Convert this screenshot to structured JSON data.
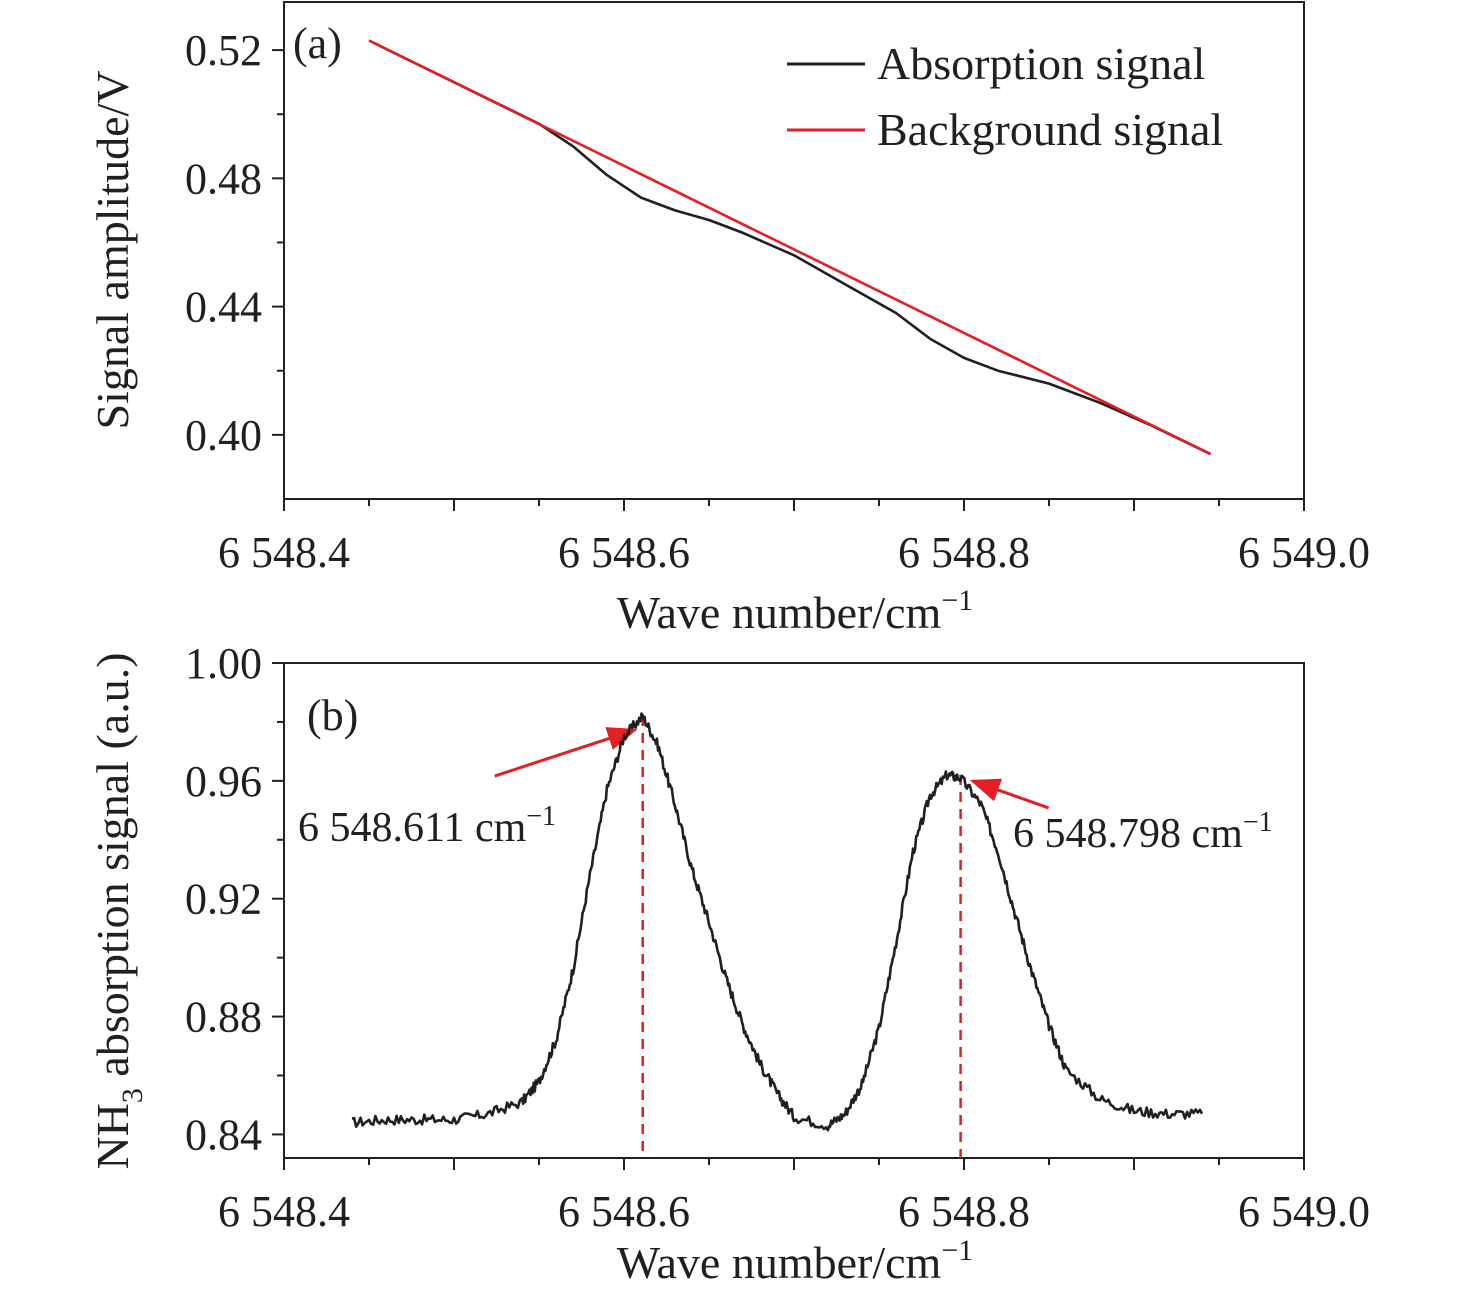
{
  "chart_data": [
    {
      "type": "line",
      "panel_label": "(a)",
      "xlabel": "Wave number/cm",
      "xlabel_sup": "−1",
      "ylabel": "Signal amplitude/V",
      "xlim": [
        6548.4,
        6549.0
      ],
      "ylim": [
        0.38,
        0.535
      ],
      "x_ticks": [
        {
          "value": 6548.4,
          "label": "6 548.4"
        },
        {
          "value": 6548.6,
          "label": "6 548.6"
        },
        {
          "value": 6548.8,
          "label": "6 548.8"
        },
        {
          "value": 6549.0,
          "label": "6 549.0"
        }
      ],
      "y_ticks": [
        {
          "value": 0.4,
          "label": "0.40"
        },
        {
          "value": 0.44,
          "label": "0.44"
        },
        {
          "value": 0.48,
          "label": "0.48"
        },
        {
          "value": 0.52,
          "label": "0.52"
        }
      ],
      "legend_position": "top-right",
      "grid": false,
      "series": [
        {
          "name": "Absorption signal",
          "color": "#231f20",
          "x": [
            6548.45,
            6548.5,
            6548.55,
            6548.57,
            6548.59,
            6548.61,
            6548.63,
            6548.65,
            6548.67,
            6548.7,
            6548.73,
            6548.76,
            6548.78,
            6548.8,
            6548.82,
            6548.85,
            6548.88,
            6548.91,
            6548.945
          ],
          "y": [
            0.523,
            0.51,
            0.497,
            0.49,
            0.481,
            0.474,
            0.47,
            0.467,
            0.463,
            0.456,
            0.447,
            0.438,
            0.43,
            0.424,
            0.42,
            0.416,
            0.41,
            0.403,
            0.394
          ]
        },
        {
          "name": "Background signal",
          "color": "#e31e24",
          "x": [
            6548.45,
            6548.945
          ],
          "y": [
            0.523,
            0.394
          ]
        }
      ]
    },
    {
      "type": "line",
      "panel_label": "(b)",
      "xlabel": "Wave number/cm",
      "xlabel_sup": "−1",
      "ylabel_parts": [
        "NH",
        "3",
        " absorption signal (a.u.)"
      ],
      "xlim": [
        6548.4,
        6549.0
      ],
      "ylim": [
        0.832,
        1.0
      ],
      "x_ticks": [
        {
          "value": 6548.4,
          "label": "6 548.4"
        },
        {
          "value": 6548.6,
          "label": "6 548.6"
        },
        {
          "value": 6548.8,
          "label": "6 548.8"
        },
        {
          "value": 6549.0,
          "label": "6 549.0"
        }
      ],
      "y_ticks": [
        {
          "value": 0.84,
          "label": "0.84"
        },
        {
          "value": 0.88,
          "label": "0.88"
        },
        {
          "value": 0.92,
          "label": "0.92"
        },
        {
          "value": 0.96,
          "label": "0.96"
        },
        {
          "value": 1.0,
          "label": "1.00"
        }
      ],
      "grid": false,
      "series": [
        {
          "color": "#231f20",
          "x": [
            6548.44,
            6548.46,
            6548.48,
            6548.5,
            6548.52,
            6548.54,
            6548.55,
            6548.56,
            6548.57,
            6548.58,
            6548.59,
            6548.6,
            6548.611,
            6548.62,
            6548.63,
            6548.64,
            6548.65,
            6548.66,
            6548.67,
            6548.68,
            6548.69,
            6548.7,
            6548.72,
            6548.73,
            6548.74,
            6548.75,
            6548.76,
            6548.77,
            6548.78,
            6548.79,
            6548.798,
            6548.81,
            6548.82,
            6548.83,
            6548.84,
            6548.85,
            6548.86,
            6548.88,
            6548.9,
            6548.92,
            6548.94
          ],
          "y": [
            0.844,
            0.845,
            0.845,
            0.845,
            0.847,
            0.851,
            0.858,
            0.872,
            0.896,
            0.928,
            0.957,
            0.975,
            0.982,
            0.972,
            0.952,
            0.93,
            0.912,
            0.893,
            0.877,
            0.864,
            0.854,
            0.846,
            0.843,
            0.847,
            0.857,
            0.876,
            0.905,
            0.936,
            0.955,
            0.962,
            0.961,
            0.952,
            0.936,
            0.915,
            0.895,
            0.877,
            0.862,
            0.852,
            0.848,
            0.847,
            0.847
          ]
        }
      ],
      "peak_markers": [
        {
          "x": 6548.611,
          "peak_y": 0.982,
          "label": "6 548.611 cm",
          "label_sup": "−1",
          "color": "#e31e24"
        },
        {
          "x": 6548.798,
          "peak_y": 0.962,
          "label": "6 548.798 cm",
          "label_sup": "−1",
          "color": "#e31e24"
        }
      ]
    }
  ]
}
